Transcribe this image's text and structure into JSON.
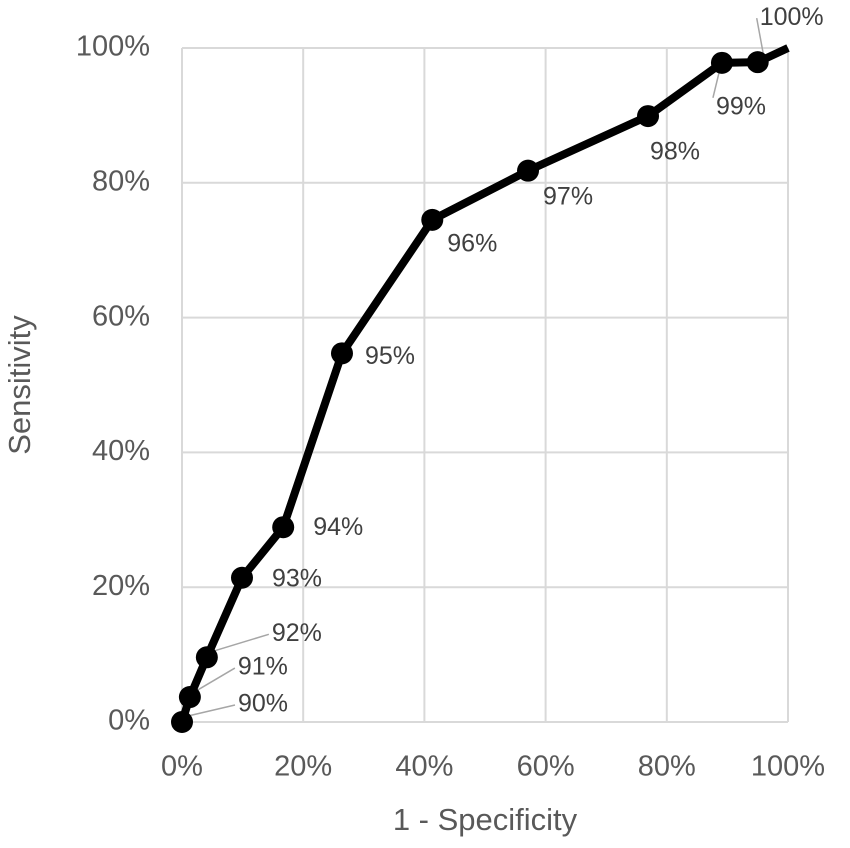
{
  "chart_data": {
    "type": "line",
    "x_label": "1 - Specificity",
    "y_label": "Sensitivity",
    "x": [
      0,
      1.3,
      4.1,
      9.9,
      16.7,
      26.4,
      41.3,
      57.1,
      76.9,
      89.1,
      95.0,
      100
    ],
    "y": [
      0,
      3.7,
      9.6,
      21.4,
      28.9,
      54.7,
      74.5,
      81.8,
      89.9,
      97.8,
      97.9,
      100
    ],
    "point_labels": [
      "90%",
      "91%",
      "92%",
      "93%",
      "94%",
      "95%",
      "96%",
      "97%",
      "98%",
      "99%",
      "100%",
      null
    ],
    "color": "#000000",
    "xlim": [
      0,
      100
    ],
    "ylim": [
      0,
      100
    ],
    "xticks": [
      {
        "value": 0,
        "label": "0%"
      },
      {
        "value": 20,
        "label": "20%"
      },
      {
        "value": 40,
        "label": "40%"
      },
      {
        "value": 60,
        "label": "60%"
      },
      {
        "value": 80,
        "label": "80%"
      },
      {
        "value": 100,
        "label": "100%"
      }
    ],
    "yticks": [
      {
        "value": 0,
        "label": "0%"
      },
      {
        "value": 20,
        "label": "20%"
      },
      {
        "value": 40,
        "label": "40%"
      },
      {
        "value": 60,
        "label": "60%"
      },
      {
        "value": 80,
        "label": "80%"
      },
      {
        "value": 100,
        "label": "100%"
      }
    ],
    "grid": true
  }
}
